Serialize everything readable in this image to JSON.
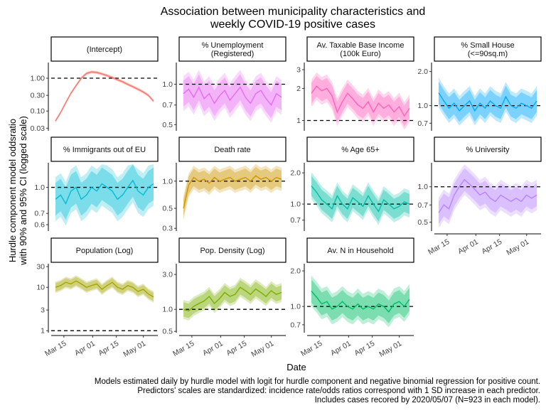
{
  "chart_data": {
    "type": "line",
    "title": "Association between municipality characteristics and\nweekly COVID-19 positive cases",
    "xlabel": "Date",
    "ylabel": "Hurdle component model oddsratio\nwith 90% and 95% CI (logged scale)",
    "x_ticks": [
      "Mar 15",
      "Apr 01",
      "Apr 15",
      "May 01"
    ],
    "date_range": [
      "2020-03-10",
      "2020-05-07"
    ],
    "reference_line": 1.0,
    "caption": "Models estimated daily by hurdle model with logit for hurdle component and negative binomial regression for positive count.\nPredictors' scales are standardized: incidence rate/odds ratios correspond with 1 SD increase in each predictor.\nIncludes cases recored by 2020/05/07 (N=923 in each model).",
    "panels": [
      {
        "name": "(Intercept)",
        "color": "#F8766D",
        "y_ticks": [
          0.03,
          0.1,
          0.3,
          1.0
        ],
        "y_tick_labels": [
          "0.03",
          "0.10",
          "0.30",
          "1.00"
        ],
        "ylim": [
          0.025,
          3.0
        ],
        "values": [
          0.05,
          0.09,
          0.18,
          0.35,
          0.6,
          1.0,
          1.4,
          1.55,
          1.5,
          1.35,
          1.2,
          1.05,
          0.9,
          0.78,
          0.65,
          0.55,
          0.46,
          0.38,
          0.3,
          0.2
        ]
      },
      {
        "name": "% Unemployment\n(Registered)",
        "color": "#E76BF3",
        "y_ticks": [
          0.5,
          0.7,
          1.0
        ],
        "y_tick_labels": [
          "0.5",
          "0.7",
          "1.0"
        ],
        "ylim": [
          0.45,
          1.45
        ],
        "values": [
          0.85,
          0.92,
          0.8,
          0.95,
          0.78,
          0.85,
          0.72,
          0.82,
          0.9,
          0.76,
          0.85,
          0.95,
          0.8,
          0.72,
          0.85,
          0.9,
          0.78,
          0.7,
          0.85,
          0.8
        ]
      },
      {
        "name": "Av. Taxable Base Income\n(100k Euro)",
        "color": "#FF62BC",
        "y_ticks": [
          1,
          2,
          3
        ],
        "y_tick_labels": [
          "1",
          "2",
          "3"
        ],
        "ylim": [
          0.8,
          3.5
        ],
        "values": [
          1.8,
          2.1,
          1.9,
          2.0,
          1.7,
          1.2,
          1.5,
          1.8,
          1.6,
          1.4,
          1.3,
          1.5,
          1.2,
          1.45,
          1.3,
          1.4,
          1.2,
          1.35,
          1.1,
          1.3
        ]
      },
      {
        "name": "% Small House\n(<=90sq.m)",
        "color": "#00A9FF",
        "y_ticks": [
          0.7,
          1.0,
          2.0
        ],
        "y_tick_labels": [
          "0.7",
          "1.0",
          "2.0"
        ],
        "ylim": [
          0.6,
          2.4
        ],
        "values": [
          1.3,
          1.1,
          0.95,
          1.05,
          0.9,
          1.0,
          1.1,
          0.9,
          1.05,
          0.95,
          1.1,
          1.0,
          0.95,
          1.2,
          1.0,
          0.95,
          1.05,
          1.0,
          0.95,
          1.1
        ]
      },
      {
        "name": "% Immigrants out of EU",
        "color": "#00BCD8",
        "y_ticks": [
          0.6,
          0.7,
          1.0
        ],
        "y_tick_labels": [
          "0.6",
          "0.7",
          "1.0"
        ],
        "ylim": [
          0.55,
          1.4
        ],
        "values": [
          0.85,
          0.9,
          0.8,
          0.95,
          1.0,
          0.85,
          0.9,
          1.0,
          0.95,
          1.05,
          1.0,
          0.95,
          0.85,
          0.9,
          1.0,
          1.1,
          0.95,
          0.9,
          1.0,
          1.05
        ]
      },
      {
        "name": "Death rate",
        "color": "#CD9600",
        "y_ticks": [
          0.3,
          0.5,
          1.0
        ],
        "y_tick_labels": [
          "0.3",
          "0.5",
          "1.0"
        ],
        "ylim": [
          0.28,
          1.6
        ],
        "values": [
          0.5,
          0.9,
          1.1,
          1.0,
          1.05,
          0.95,
          1.1,
          1.0,
          1.05,
          1.1,
          1.0,
          1.05,
          1.1,
          1.0,
          1.15,
          1.05,
          1.1,
          1.0,
          1.1,
          1.05
        ]
      },
      {
        "name": "% Age 65+",
        "color": "#00BFA5",
        "y_ticks": [
          0.7,
          1.0,
          2.0
        ],
        "y_tick_labels": [
          "0.7",
          "1.0",
          "2.0"
        ],
        "ylim": [
          0.55,
          2.5
        ],
        "values": [
          1.5,
          1.3,
          1.1,
          1.0,
          0.9,
          1.2,
          1.0,
          0.9,
          1.15,
          1.05,
          0.95,
          1.2,
          1.0,
          0.85,
          1.1,
          1.0,
          0.9,
          0.95,
          1.05,
          1.0
        ]
      },
      {
        "name": "% University",
        "color": "#B983FF",
        "y_ticks": [
          0.5,
          0.7,
          1.0
        ],
        "y_tick_labels": [
          "0.5",
          "0.7",
          "1.0"
        ],
        "ylim": [
          0.42,
          1.6
        ],
        "values": [
          0.6,
          0.7,
          0.65,
          0.85,
          1.0,
          1.15,
          1.05,
          0.95,
          0.85,
          0.9,
          0.8,
          0.75,
          0.85,
          0.8,
          0.75,
          0.8,
          0.75,
          0.85,
          0.8,
          0.85
        ]
      },
      {
        "name": "Population (Log)",
        "color": "#A3A500",
        "y_ticks": [
          1,
          3,
          10,
          30
        ],
        "y_tick_labels": [
          "1",
          "3",
          "10",
          "30"
        ],
        "ylim": [
          0.9,
          35
        ],
        "values": [
          10,
          11,
          13,
          12,
          14,
          12,
          10,
          11,
          12,
          9,
          11,
          13,
          10,
          9,
          11,
          10,
          8,
          9,
          7,
          6
        ]
      },
      {
        "name": "Pop. Density (Log)",
        "color": "#7CAE00",
        "y_ticks": [
          0.5,
          1.0,
          3.0
        ],
        "y_tick_labels": [
          "0.5",
          "1.0",
          "3.0"
        ],
        "ylim": [
          0.48,
          4.2
        ],
        "values": [
          1.0,
          0.95,
          1.1,
          1.2,
          1.3,
          1.5,
          1.2,
          1.4,
          1.7,
          1.5,
          1.6,
          2.0,
          1.8,
          1.6,
          1.9,
          1.7,
          1.5,
          1.8,
          1.6,
          1.7
        ]
      },
      {
        "name": "Av. N in Household",
        "color": "#00BE67",
        "y_ticks": [
          0.7,
          1.0,
          2.0
        ],
        "y_tick_labels": [
          "0.7",
          "1.0",
          "2.0"
        ],
        "ylim": [
          0.6,
          2.3
        ],
        "values": [
          1.35,
          1.2,
          1.05,
          1.1,
          0.95,
          1.0,
          1.1,
          1.0,
          0.95,
          1.05,
          0.95,
          1.0,
          0.95,
          1.05,
          1.0,
          0.9,
          1.05,
          1.1,
          1.0,
          1.15
        ]
      }
    ]
  }
}
